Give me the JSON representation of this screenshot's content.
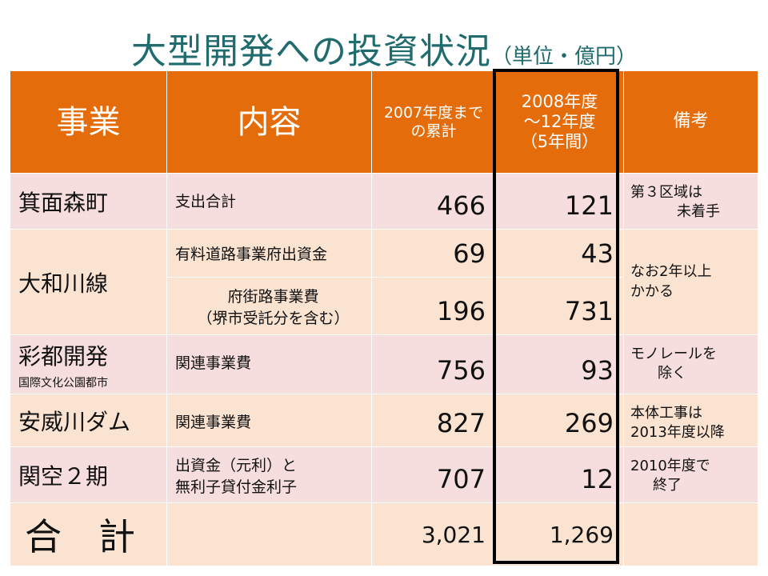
{
  "title": {
    "main": "大型開発への投資状況",
    "sub": "（単位・億円）"
  },
  "header": {
    "business": "事業",
    "content": "内容",
    "cumulative": "2007年度まで\nの累計",
    "period": "2008年度\n～12年度\n（5年間）",
    "remarks": "備考"
  },
  "rows": {
    "minoh": {
      "business": "箕面森町",
      "content": "支出合計",
      "cumulative": "466",
      "period": "121",
      "remark1": "第３区域は",
      "remark2": "未着手"
    },
    "yamato1": {
      "business": "大和川線",
      "content": "有料道路事業府出資金",
      "cumulative": "69",
      "period": "43",
      "remark1": "なお2年以上",
      "remark2": "かかる"
    },
    "yamato2": {
      "content1": "府街路事業費",
      "content2": "（堺市受託分を含む）",
      "cumulative": "196",
      "period": "731"
    },
    "saito": {
      "business": "彩都開発",
      "note": "国際文化公園都市",
      "content": "関連事業費",
      "cumulative": "756",
      "period": "93",
      "remark1": "モノレールを",
      "remark2": "除く"
    },
    "aigawa": {
      "business": "安威川ダム",
      "content": "関連事業費",
      "cumulative": "827",
      "period": "269",
      "remark1": "本体工事は",
      "remark2": "2013年度以降"
    },
    "kanku": {
      "business": "関空２期",
      "content1": "出資金（元利）と",
      "content2": "無利子貸付金利子",
      "cumulative": "707",
      "period": "12",
      "remark1": "2010年度で",
      "remark2": "終了"
    },
    "total": {
      "label": "合　計",
      "cumulative": "3,021",
      "period": "1,269"
    }
  },
  "colors": {
    "header_bg": "#e46c0a",
    "row_pink": "#f6dede",
    "row_peach": "#fbe3d1",
    "title": "#1f6b6e",
    "highlight_border": "#000000"
  }
}
